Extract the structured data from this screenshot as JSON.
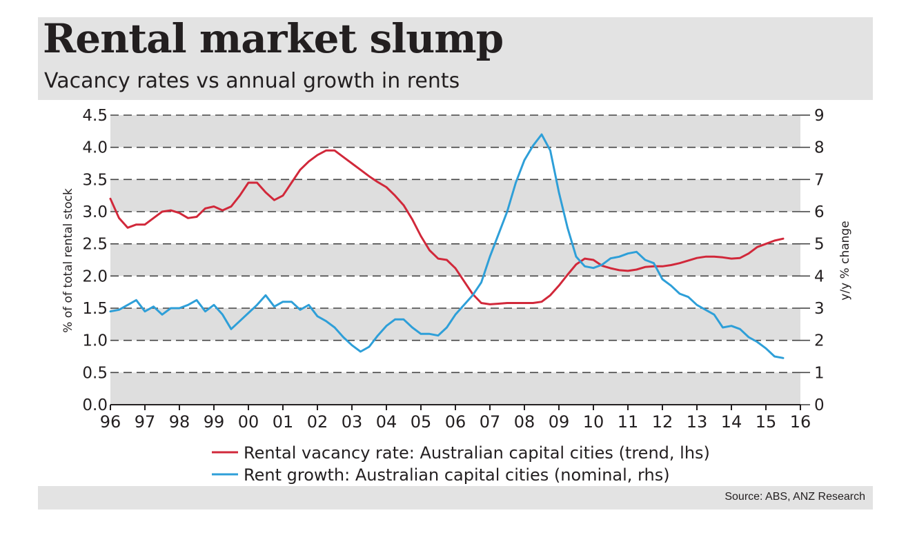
{
  "header": {
    "title": "Rental market slump",
    "subtitle": "Vacancy rates vs annual growth in rents"
  },
  "footer": {
    "source": "Source: ABS, ANZ Research"
  },
  "colors": {
    "vacancy_line": "#d1283a",
    "rent_line": "#2e9fd8",
    "band": "#dedede",
    "text": "#231f20"
  },
  "chart_data": {
    "type": "line",
    "title": "Rental market slump",
    "subtitle": "Vacancy rates vs annual growth in rents",
    "xlabel": "",
    "ylabel_left": "% of of total rental stock",
    "ylabel_right": "y/y % change",
    "x_ticks": [
      "96",
      "97",
      "98",
      "99",
      "00",
      "01",
      "02",
      "03",
      "04",
      "05",
      "06",
      "07",
      "08",
      "09",
      "10",
      "11",
      "12",
      "13",
      "14",
      "15",
      "16"
    ],
    "xlim": [
      1996,
      2016
    ],
    "ylim_left": [
      0,
      4.5
    ],
    "ylim_right": [
      0,
      9
    ],
    "y_ticks_left": [
      "0.0",
      "0.5",
      "1.0",
      "1.5",
      "2.0",
      "2.5",
      "3.0",
      "3.5",
      "4.0",
      "4.5"
    ],
    "y_ticks_right": [
      "0",
      "1",
      "2",
      "3",
      "4",
      "5",
      "6",
      "7",
      "8",
      "9"
    ],
    "grid": "dashed horizontal with alternating grey bands",
    "series": [
      {
        "name": "Rental vacancy rate: Australian capital cities (trend, lhs)",
        "axis": "left",
        "color": "#d1283a",
        "x": [
          1996.0,
          1996.25,
          1996.5,
          1996.75,
          1997.0,
          1997.25,
          1997.5,
          1997.75,
          1998.0,
          1998.25,
          1998.5,
          1998.75,
          1999.0,
          1999.25,
          1999.5,
          1999.75,
          2000.0,
          2000.25,
          2000.5,
          2000.75,
          2001.0,
          2001.25,
          2001.5,
          2001.75,
          2002.0,
          2002.25,
          2002.5,
          2002.75,
          2003.0,
          2003.25,
          2003.5,
          2003.75,
          2004.0,
          2004.25,
          2004.5,
          2004.75,
          2005.0,
          2005.25,
          2005.5,
          2005.75,
          2006.0,
          2006.25,
          2006.5,
          2006.75,
          2007.0,
          2007.25,
          2007.5,
          2007.75,
          2008.0,
          2008.25,
          2008.5,
          2008.75,
          2009.0,
          2009.25,
          2009.5,
          2009.75,
          2010.0,
          2010.25,
          2010.5,
          2010.75,
          2011.0,
          2011.25,
          2011.5,
          2011.75,
          2012.0,
          2012.25,
          2012.5,
          2012.75,
          2013.0,
          2013.25,
          2013.5,
          2013.75,
          2014.0,
          2014.25,
          2014.5,
          2014.75,
          2015.0,
          2015.25,
          2015.5
        ],
        "values": [
          3.2,
          2.9,
          2.75,
          2.8,
          2.8,
          2.9,
          3.0,
          3.02,
          2.98,
          2.9,
          2.92,
          3.05,
          3.08,
          3.02,
          3.08,
          3.25,
          3.45,
          3.45,
          3.3,
          3.18,
          3.25,
          3.45,
          3.65,
          3.78,
          3.88,
          3.95,
          3.95,
          3.85,
          3.75,
          3.65,
          3.55,
          3.46,
          3.38,
          3.25,
          3.1,
          2.88,
          2.62,
          2.4,
          2.27,
          2.25,
          2.12,
          1.92,
          1.72,
          1.58,
          1.56,
          1.57,
          1.58,
          1.58,
          1.58,
          1.58,
          1.6,
          1.7,
          1.85,
          2.02,
          2.18,
          2.27,
          2.25,
          2.16,
          2.12,
          2.09,
          2.08,
          2.1,
          2.14,
          2.15,
          2.15,
          2.17,
          2.2,
          2.24,
          2.28,
          2.3,
          2.3,
          2.29,
          2.27,
          2.28,
          2.35,
          2.45,
          2.5,
          2.55,
          2.58
        ]
      },
      {
        "name": "Rent growth: Australian capital cities (nominal, rhs)",
        "axis": "right",
        "color": "#2e9fd8",
        "x": [
          1996.0,
          1996.25,
          1996.5,
          1996.75,
          1997.0,
          1997.25,
          1997.5,
          1997.75,
          1998.0,
          1998.25,
          1998.5,
          1998.75,
          1999.0,
          1999.25,
          1999.5,
          1999.75,
          2000.0,
          2000.25,
          2000.5,
          2000.75,
          2001.0,
          2001.25,
          2001.5,
          2001.75,
          2002.0,
          2002.25,
          2002.5,
          2002.75,
          2003.0,
          2003.25,
          2003.5,
          2003.75,
          2004.0,
          2004.25,
          2004.5,
          2004.75,
          2005.0,
          2005.25,
          2005.5,
          2005.75,
          2006.0,
          2006.25,
          2006.5,
          2006.75,
          2007.0,
          2007.25,
          2007.5,
          2007.75,
          2008.0,
          2008.25,
          2008.5,
          2008.75,
          2009.0,
          2009.25,
          2009.5,
          2009.75,
          2010.0,
          2010.25,
          2010.5,
          2010.75,
          2011.0,
          2011.25,
          2011.5,
          2011.75,
          2012.0,
          2012.25,
          2012.5,
          2012.75,
          2013.0,
          2013.25,
          2013.5,
          2013.75,
          2014.0,
          2014.25,
          2014.5,
          2014.75,
          2015.0,
          2015.25,
          2015.5
        ],
        "values": [
          2.9,
          2.95,
          3.1,
          3.25,
          2.9,
          3.05,
          2.8,
          3.0,
          3.0,
          3.1,
          3.25,
          2.9,
          3.1,
          2.8,
          2.35,
          2.6,
          2.85,
          3.1,
          3.4,
          3.05,
          3.2,
          3.2,
          2.95,
          3.1,
          2.75,
          2.6,
          2.4,
          2.1,
          1.85,
          1.65,
          1.8,
          2.15,
          2.45,
          2.65,
          2.65,
          2.4,
          2.2,
          2.2,
          2.15,
          2.4,
          2.8,
          3.1,
          3.4,
          3.8,
          4.6,
          5.3,
          6.0,
          6.9,
          7.6,
          8.05,
          8.4,
          7.9,
          6.6,
          5.5,
          4.6,
          4.3,
          4.25,
          4.35,
          4.55,
          4.6,
          4.7,
          4.75,
          4.5,
          4.4,
          3.9,
          3.7,
          3.45,
          3.35,
          3.1,
          2.95,
          2.8,
          2.4,
          2.45,
          2.35,
          2.1,
          1.95,
          1.75,
          1.5,
          1.45
        ]
      }
    ]
  }
}
